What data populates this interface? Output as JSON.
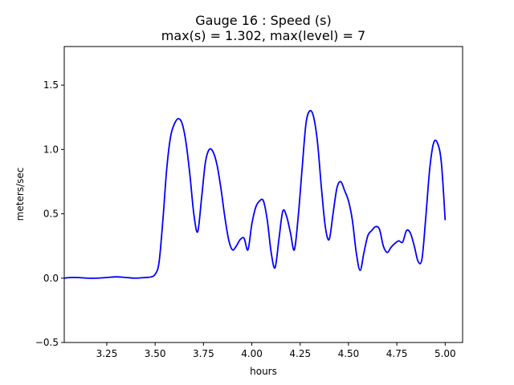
{
  "chart_data": {
    "type": "line",
    "title": "Gauge 16 : Speed (s)",
    "subtitle": "max(s) =   1.302,    max(level) = 7",
    "xlabel": "hours",
    "ylabel": "meters/sec",
    "xlim": [
      3.03,
      5.09
    ],
    "ylim": [
      -0.5,
      1.8
    ],
    "xticks": [
      3.25,
      3.5,
      3.75,
      4.0,
      4.25,
      4.5,
      4.75,
      5.0
    ],
    "xtick_labels": [
      "3.25",
      "3.50",
      "3.75",
      "4.00",
      "4.25",
      "4.50",
      "4.75",
      "5.00"
    ],
    "yticks": [
      -0.5,
      0.0,
      0.5,
      1.0,
      1.5
    ],
    "ytick_labels": [
      "−0.5",
      "0.0",
      "0.5",
      "1.0",
      "1.5"
    ],
    "grid": false,
    "line_color": "#0000ff",
    "series": [
      {
        "x": [
          3.03,
          3.06,
          3.1,
          3.15,
          3.2,
          3.25,
          3.3,
          3.35,
          3.4,
          3.45,
          3.48,
          3.5,
          3.52,
          3.54,
          3.56,
          3.58,
          3.6,
          3.62,
          3.64,
          3.66,
          3.68,
          3.7,
          3.72,
          3.74,
          3.76,
          3.78,
          3.8,
          3.82,
          3.84,
          3.86,
          3.88,
          3.9,
          3.92,
          3.94,
          3.96,
          3.98,
          4.0,
          4.02,
          4.04,
          4.06,
          4.08,
          4.1,
          4.12,
          4.14,
          4.16,
          4.18,
          4.2,
          4.22,
          4.24,
          4.26,
          4.28,
          4.3,
          4.32,
          4.34,
          4.36,
          4.38,
          4.4,
          4.42,
          4.44,
          4.46,
          4.48,
          4.5,
          4.52,
          4.54,
          4.56,
          4.58,
          4.6,
          4.62,
          4.64,
          4.66,
          4.68,
          4.7,
          4.72,
          4.74,
          4.76,
          4.78,
          4.8,
          4.82,
          4.84,
          4.86,
          4.88,
          4.9,
          4.92,
          4.94,
          4.96,
          4.98,
          5.0
        ],
        "y": [
          0.0,
          0.005,
          0.005,
          0.0,
          0.0,
          0.005,
          0.01,
          0.005,
          0.0,
          0.005,
          0.01,
          0.03,
          0.12,
          0.45,
          0.85,
          1.1,
          1.2,
          1.24,
          1.2,
          1.05,
          0.8,
          0.5,
          0.36,
          0.62,
          0.9,
          1.0,
          0.98,
          0.88,
          0.7,
          0.48,
          0.3,
          0.22,
          0.25,
          0.3,
          0.31,
          0.22,
          0.42,
          0.55,
          0.6,
          0.6,
          0.45,
          0.2,
          0.08,
          0.3,
          0.52,
          0.48,
          0.35,
          0.22,
          0.48,
          0.85,
          1.2,
          1.3,
          1.25,
          1.05,
          0.7,
          0.4,
          0.3,
          0.5,
          0.7,
          0.75,
          0.68,
          0.6,
          0.45,
          0.2,
          0.06,
          0.2,
          0.33,
          0.37,
          0.4,
          0.38,
          0.25,
          0.2,
          0.24,
          0.27,
          0.29,
          0.28,
          0.37,
          0.35,
          0.25,
          0.13,
          0.15,
          0.48,
          0.85,
          1.05,
          1.05,
          0.9,
          0.45
        ]
      }
    ]
  }
}
